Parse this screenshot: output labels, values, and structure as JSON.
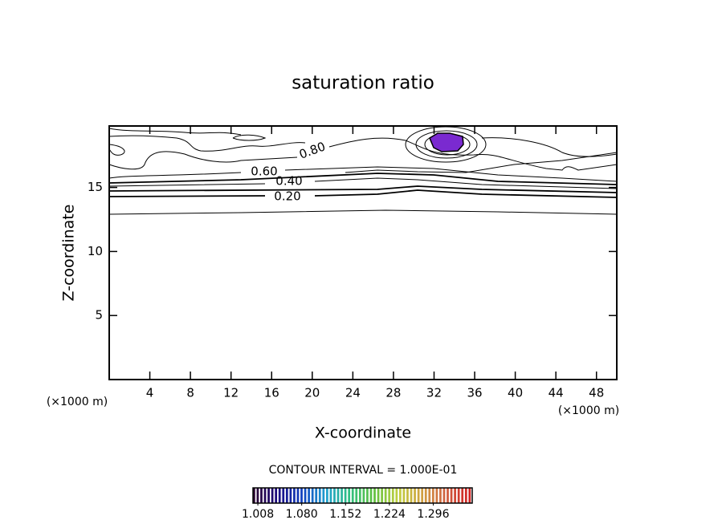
{
  "chart_data": {
    "type": "contour",
    "title": "saturation ratio",
    "x_label": "X-coordinate",
    "y_label": "Z-coordinate",
    "x_unit": "(×1000 m)",
    "xlim": [
      0,
      50
    ],
    "xticks": [
      4,
      8,
      12,
      16,
      20,
      24,
      28,
      32,
      36,
      40,
      44,
      48
    ],
    "ylim": [
      0,
      19.8
    ],
    "yticks": [
      5,
      10,
      15
    ],
    "contour_levels": [
      0.2,
      0.4,
      0.6,
      0.8
    ],
    "contour_labels": [
      "0.20",
      "0.40",
      "0.60",
      "0.80"
    ],
    "contour_interval_text": "CONTOUR INTERVAL = 1.000E-01",
    "colorbar_lim": [
      1.0,
      1.36
    ],
    "colorbar_ticks": [
      1.008,
      {
        "value": 1.08,
        "label": "1.080"
      },
      1.152,
      1.224,
      1.296
    ],
    "colormap": [
      "#2a0030",
      "#1a0a80",
      "#1040c0",
      "#20a0d0",
      "#30c080",
      "#60c040",
      "#c0d040",
      "#d0a040",
      "#d06040",
      "#d02020"
    ],
    "fill_color": "#7a2ad0"
  }
}
